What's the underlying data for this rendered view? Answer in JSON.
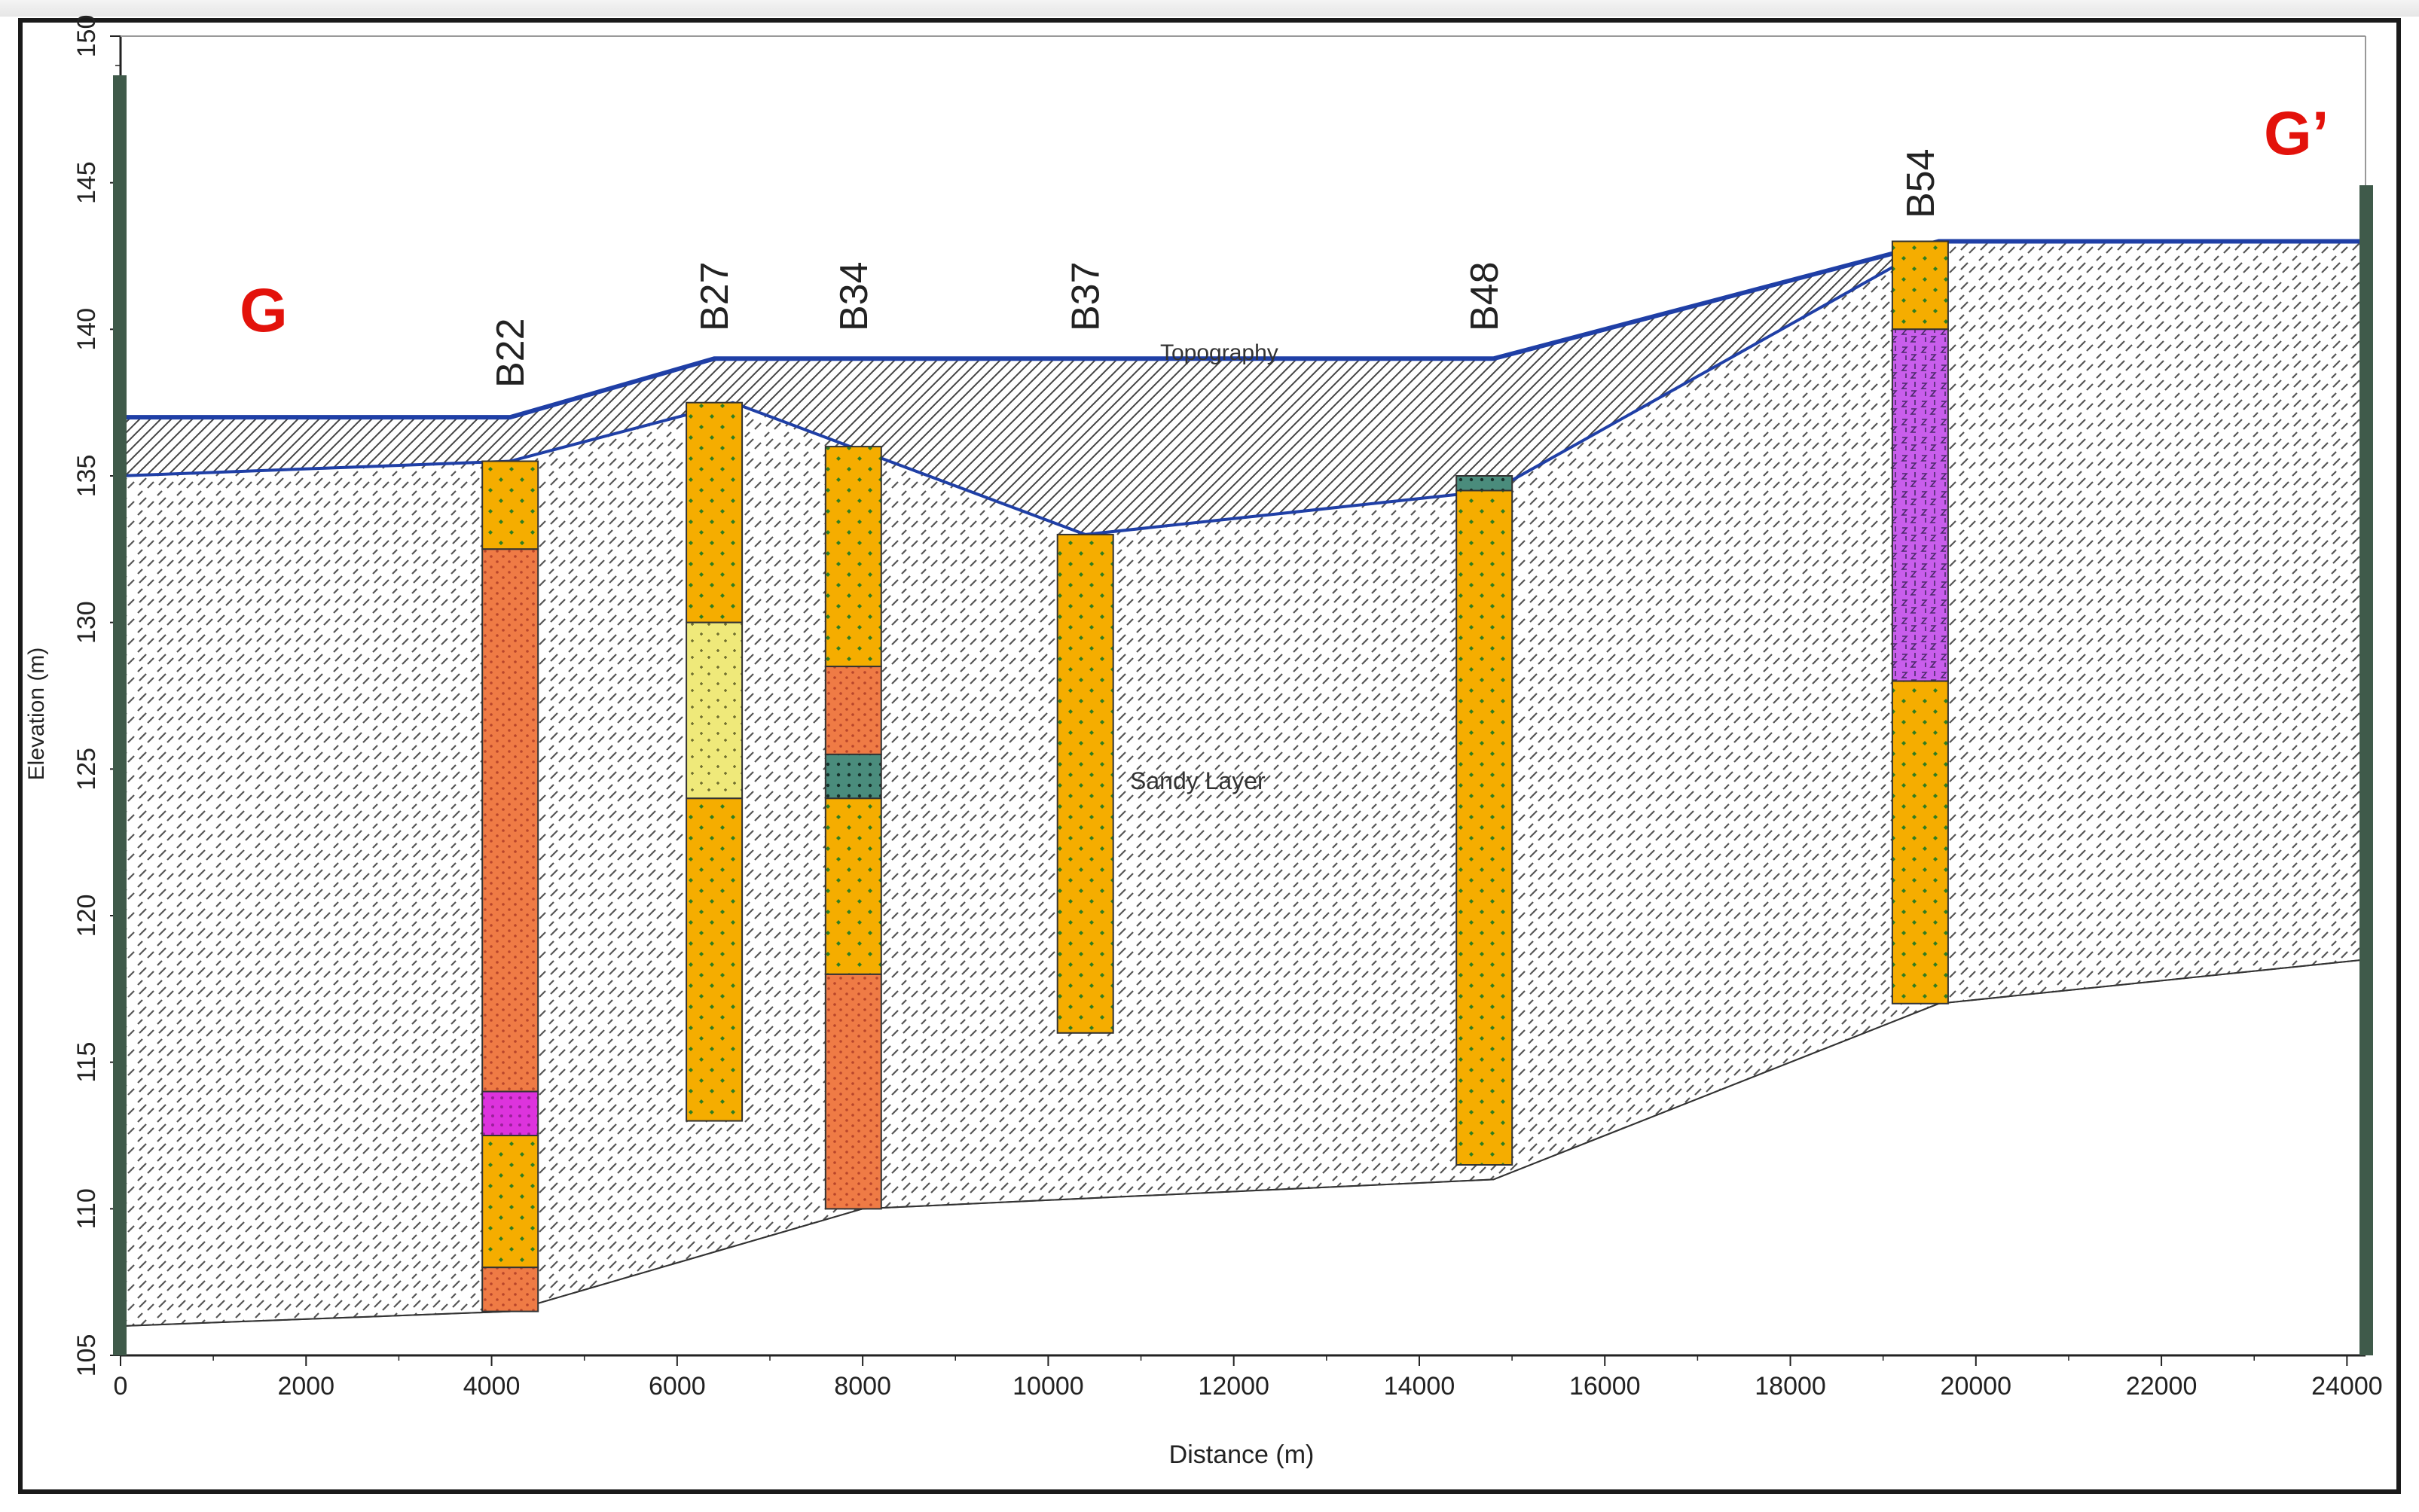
{
  "section": {
    "start_label": "G",
    "end_label": "G’",
    "label_color": "#e3120b",
    "surface_line_color": "#1f3fa6"
  },
  "axes": {
    "xlabel": "Distance (m)",
    "ylabel": "Elevation (m)",
    "xlim": [
      0,
      24200
    ],
    "ylim": [
      105,
      150
    ],
    "xticks": [
      0,
      2000,
      4000,
      6000,
      8000,
      10000,
      12000,
      14000,
      16000,
      18000,
      20000,
      22000,
      24000
    ],
    "yticks": [
      105,
      110,
      115,
      120,
      125,
      130,
      135,
      140,
      145,
      150
    ]
  },
  "annotations": {
    "topography": "Topography",
    "sandy_layer": "Sandy Layer"
  },
  "colors": {
    "gravelly_sand": "#f5ad00",
    "gravel_dots": "#2f7d1f",
    "clayey_sand": "#ef7b45",
    "silt_yellow": "#efe97a",
    "magenta_band": "#dd33dd",
    "purple_clay": "#c95eec",
    "teal_layer": "#4a8c7c",
    "hatch": "#555555",
    "end_post": "#3f5a4a"
  },
  "chart_data": {
    "type": "cross-section",
    "surfaces": {
      "topography": [
        [
          0,
          137
        ],
        [
          4200,
          137
        ],
        [
          6400,
          139
        ],
        [
          14800,
          139
        ],
        [
          19600,
          143
        ],
        [
          24200,
          143
        ]
      ],
      "upper_unit_base": [
        [
          0,
          135
        ],
        [
          4200,
          135.5
        ],
        [
          6600,
          137.5
        ],
        [
          10400,
          133
        ],
        [
          14800,
          134.5
        ],
        [
          19600,
          143
        ],
        [
          24200,
          143
        ]
      ],
      "lower_unit_base": [
        [
          0,
          106
        ],
        [
          4200,
          106.5
        ],
        [
          8000,
          110
        ],
        [
          14800,
          111
        ],
        [
          19600,
          117
        ],
        [
          24200,
          118.5
        ]
      ]
    },
    "boreholes": [
      {
        "name": "B22",
        "x": 4200,
        "layers": [
          {
            "top": 135.5,
            "bottom": 132.5,
            "material": "gravelly_sand"
          },
          {
            "top": 132.5,
            "bottom": 114.0,
            "material": "clayey_sand"
          },
          {
            "top": 114.0,
            "bottom": 112.5,
            "material": "magenta_band"
          },
          {
            "top": 112.5,
            "bottom": 108.0,
            "material": "gravelly_sand"
          },
          {
            "top": 108.0,
            "bottom": 106.5,
            "material": "clayey_sand"
          }
        ]
      },
      {
        "name": "B27",
        "x": 6400,
        "layers": [
          {
            "top": 137.5,
            "bottom": 130.0,
            "material": "gravelly_sand"
          },
          {
            "top": 130.0,
            "bottom": 124.0,
            "material": "silt_yellow"
          },
          {
            "top": 124.0,
            "bottom": 113.0,
            "material": "gravelly_sand"
          }
        ]
      },
      {
        "name": "B34",
        "x": 7900,
        "layers": [
          {
            "top": 136.0,
            "bottom": 128.5,
            "material": "gravelly_sand"
          },
          {
            "top": 128.5,
            "bottom": 125.5,
            "material": "clayey_sand"
          },
          {
            "top": 125.5,
            "bottom": 124.0,
            "material": "teal_layer"
          },
          {
            "top": 124.0,
            "bottom": 118.0,
            "material": "gravelly_sand"
          },
          {
            "top": 118.0,
            "bottom": 110.0,
            "material": "clayey_sand"
          }
        ]
      },
      {
        "name": "B37",
        "x": 10400,
        "layers": [
          {
            "top": 133.0,
            "bottom": 116.0,
            "material": "gravelly_sand"
          }
        ]
      },
      {
        "name": "B48",
        "x": 14700,
        "layers": [
          {
            "top": 135.0,
            "bottom": 134.5,
            "material": "teal_layer"
          },
          {
            "top": 134.5,
            "bottom": 111.5,
            "material": "gravelly_sand"
          }
        ]
      },
      {
        "name": "B54",
        "x": 19400,
        "layers": [
          {
            "top": 143.0,
            "bottom": 140.0,
            "material": "gravelly_sand"
          },
          {
            "top": 140.0,
            "bottom": 128.0,
            "material": "purple_clay"
          },
          {
            "top": 128.0,
            "bottom": 117.0,
            "material": "gravelly_sand"
          }
        ]
      }
    ]
  }
}
